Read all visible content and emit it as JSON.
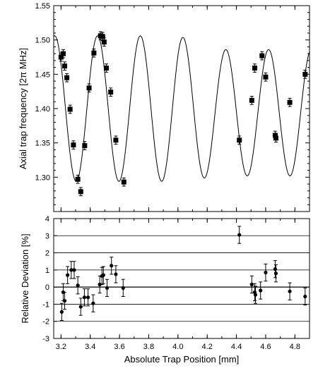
{
  "chart_data": [
    {
      "type": "scatter",
      "panel": "top",
      "ylabel": "Axial trap frequency [2π MHz]",
      "xlim": [
        3.15,
        4.9
      ],
      "ylim": [
        1.25,
        1.55
      ],
      "yticks": [
        1.3,
        1.35,
        1.4,
        1.45,
        1.5,
        1.55
      ],
      "ytick_labels": [
        "1.30",
        "1.35",
        "1.40",
        "1.45",
        "1.50",
        "1.55"
      ],
      "minor_yticks": true,
      "grid": false,
      "series": [
        {
          "kind": "points_with_errorbars",
          "marker": "square",
          "points": [
            {
              "x": 3.2,
              "y": 1.475,
              "err": 0.006
            },
            {
              "x": 3.215,
              "y": 1.48,
              "err": 0.006
            },
            {
              "x": 3.225,
              "y": 1.462,
              "err": 0.006
            },
            {
              "x": 3.24,
              "y": 1.445,
              "err": 0.006
            },
            {
              "x": 3.262,
              "y": 1.399,
              "err": 0.006
            },
            {
              "x": 3.285,
              "y": 1.347,
              "err": 0.006
            },
            {
              "x": 3.315,
              "y": 1.297,
              "err": 0.006
            },
            {
              "x": 3.335,
              "y": 1.279,
              "err": 0.006
            },
            {
              "x": 3.362,
              "y": 1.346,
              "err": 0.006
            },
            {
              "x": 3.392,
              "y": 1.43,
              "err": 0.006
            },
            {
              "x": 3.425,
              "y": 1.481,
              "err": 0.006
            },
            {
              "x": 3.47,
              "y": 1.506,
              "err": 0.006
            },
            {
              "x": 3.485,
              "y": 1.505,
              "err": 0.006
            },
            {
              "x": 3.495,
              "y": 1.497,
              "err": 0.006
            },
            {
              "x": 3.51,
              "y": 1.459,
              "err": 0.006
            },
            {
              "x": 3.54,
              "y": 1.424,
              "err": 0.006
            },
            {
              "x": 3.575,
              "y": 1.354,
              "err": 0.006
            },
            {
              "x": 3.63,
              "y": 1.293,
              "err": 0.006
            },
            {
              "x": 4.42,
              "y": 1.354,
              "err": 0.006
            },
            {
              "x": 4.505,
              "y": 1.412,
              "err": 0.006
            },
            {
              "x": 4.525,
              "y": 1.459,
              "err": 0.006
            },
            {
              "x": 4.575,
              "y": 1.477,
              "err": 0.006
            },
            {
              "x": 4.6,
              "y": 1.446,
              "err": 0.006
            },
            {
              "x": 4.665,
              "y": 1.361,
              "err": 0.006
            },
            {
              "x": 4.67,
              "y": 1.357,
              "err": 0.006
            },
            {
              "x": 4.765,
              "y": 1.409,
              "err": 0.006
            },
            {
              "x": 4.87,
              "y": 1.45,
              "err": 0.006
            }
          ]
        },
        {
          "kind": "fit_curve",
          "form": "offset + amplitude*cos(2π(x - x0)/period)",
          "offset": 1.4,
          "amplitude": 0.106,
          "period": 0.2925,
          "x0": 3.1575,
          "x_range": [
            3.15,
            4.9
          ],
          "envelope": {
            "amplitude_right": 0.092,
            "offset_right": 1.394,
            "transition_from": 4.0,
            "transition_to": 4.3
          }
        }
      ]
    },
    {
      "type": "scatter",
      "panel": "bottom",
      "xlabel": "Absolute Trap Position [mm]",
      "ylabel": "Relative Deviation [%]",
      "xlim": [
        3.15,
        4.9
      ],
      "ylim": [
        -3,
        4
      ],
      "xticks": [
        3.2,
        3.4,
        3.6,
        3.8,
        4.0,
        4.2,
        4.4,
        4.6,
        4.8
      ],
      "xtick_labels": [
        "3.2",
        "3.4",
        "3.6",
        "3.8",
        "4.0",
        "4.2",
        "4.4",
        "4.6",
        "4.8"
      ],
      "yticks": [
        -3,
        -2,
        -1,
        0,
        1,
        2,
        3,
        4
      ],
      "ytick_labels": [
        "-3",
        "-2",
        "-1",
        "0",
        "1",
        "2",
        "3",
        "4"
      ],
      "grid": "horizontal",
      "series": [
        {
          "kind": "points_with_errorbars",
          "marker": "circle",
          "points": [
            {
              "x": 3.205,
              "y": -1.45,
              "err": 0.5
            },
            {
              "x": 3.215,
              "y": -0.3,
              "err": 0.5
            },
            {
              "x": 3.225,
              "y": -0.8,
              "err": 0.5
            },
            {
              "x": 3.245,
              "y": 0.7,
              "err": 0.5
            },
            {
              "x": 3.27,
              "y": 1.0,
              "err": 0.5
            },
            {
              "x": 3.29,
              "y": 1.0,
              "err": 0.5
            },
            {
              "x": 3.315,
              "y": 0.1,
              "err": 0.5
            },
            {
              "x": 3.335,
              "y": -1.15,
              "err": 0.5
            },
            {
              "x": 3.36,
              "y": -0.6,
              "err": 0.5
            },
            {
              "x": 3.385,
              "y": -0.6,
              "err": 0.5
            },
            {
              "x": 3.42,
              "y": -0.95,
              "err": 0.5
            },
            {
              "x": 3.465,
              "y": 0.15,
              "err": 0.5
            },
            {
              "x": 3.48,
              "y": 0.65,
              "err": 0.5
            },
            {
              "x": 3.49,
              "y": 0.7,
              "err": 0.5
            },
            {
              "x": 3.515,
              "y": -0.05,
              "err": 0.5
            },
            {
              "x": 3.545,
              "y": 1.25,
              "err": 0.5
            },
            {
              "x": 3.575,
              "y": 0.75,
              "err": 0.5
            },
            {
              "x": 3.625,
              "y": -0.05,
              "err": 0.5
            },
            {
              "x": 4.42,
              "y": 3.05,
              "err": 0.5
            },
            {
              "x": 4.505,
              "y": 0.15,
              "err": 0.5
            },
            {
              "x": 4.525,
              "y": -0.3,
              "err": 0.5
            },
            {
              "x": 4.53,
              "y": -0.45,
              "err": 0.5
            },
            {
              "x": 4.565,
              "y": -0.2,
              "err": 0.5
            },
            {
              "x": 4.6,
              "y": 0.85,
              "err": 0.5
            },
            {
              "x": 4.665,
              "y": 1.05,
              "err": 0.5
            },
            {
              "x": 4.67,
              "y": 0.8,
              "err": 0.5
            },
            {
              "x": 4.765,
              "y": -0.25,
              "err": 0.5
            },
            {
              "x": 4.87,
              "y": -0.55,
              "err": 0.5
            }
          ]
        }
      ]
    }
  ]
}
